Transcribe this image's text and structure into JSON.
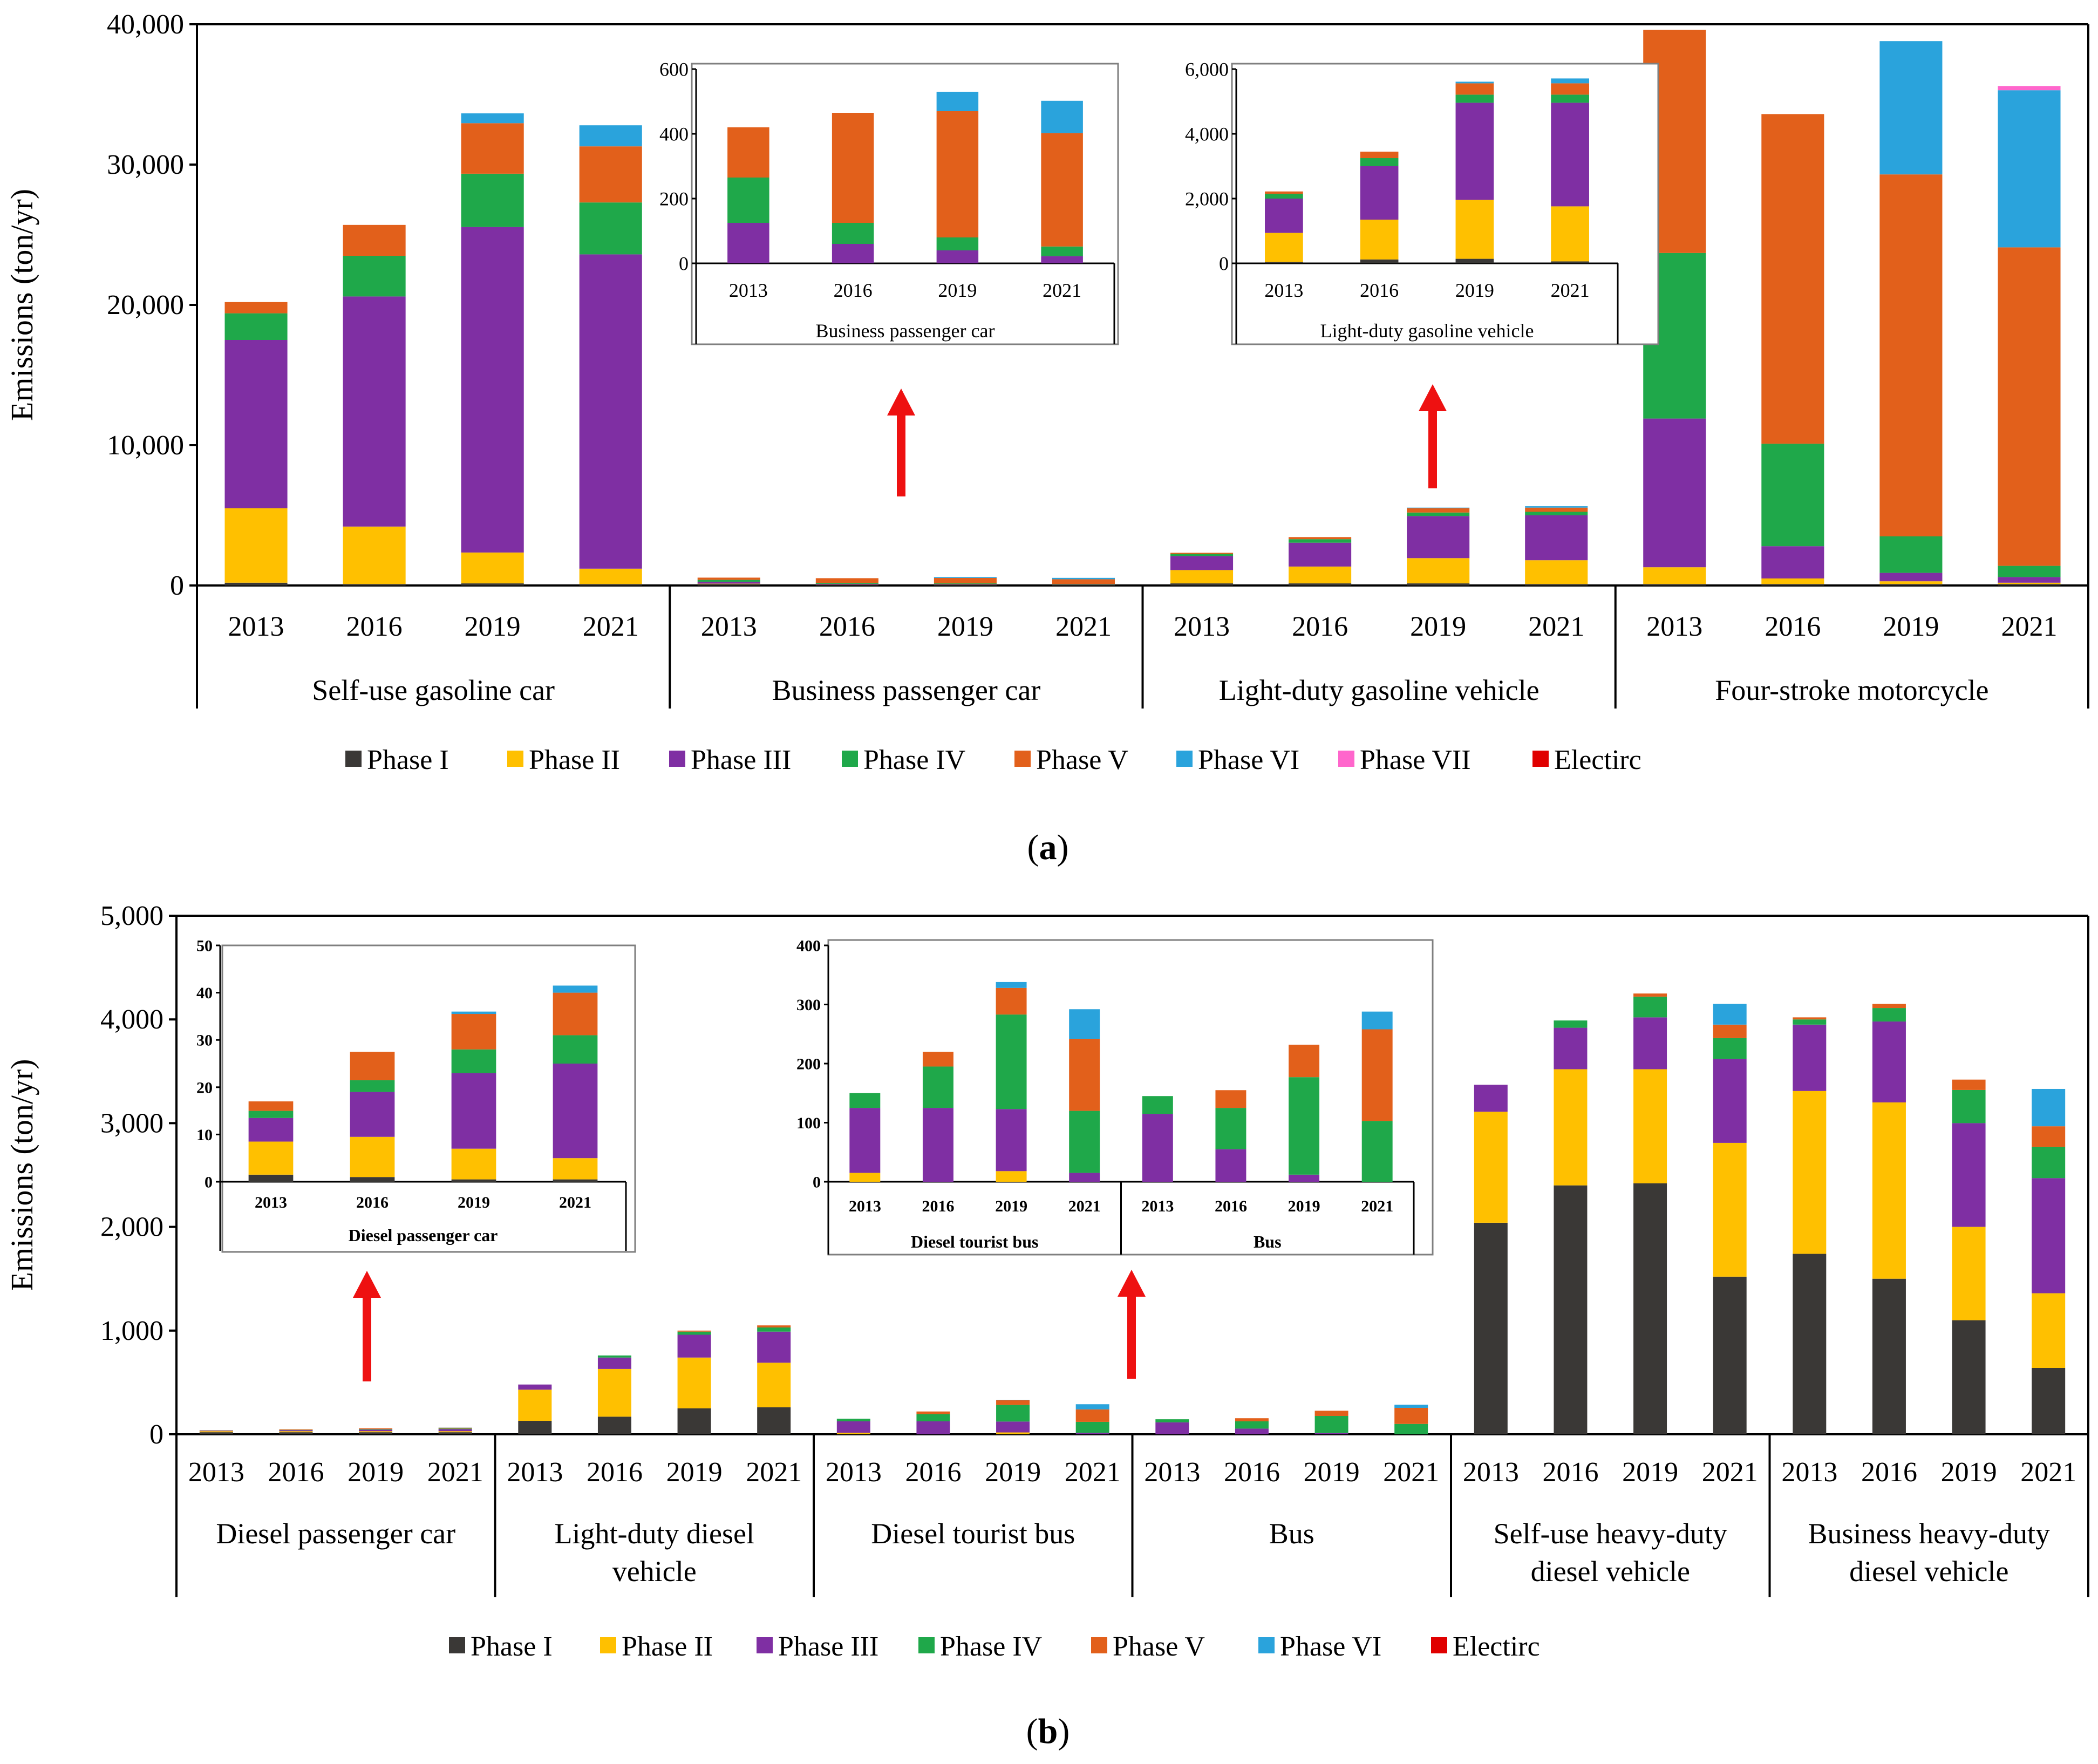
{
  "colors": {
    "Phase I": "#3a3836",
    "Phase II": "#ffc000",
    "Phase III": "#7f2fa3",
    "Phase IV": "#1fa84a",
    "Phase V": "#e2601b",
    "Phase VI": "#2aa3dc",
    "Phase VII": "#ff66cc",
    "Electirc": "#e00000"
  },
  "arrow_color": "#ee1111",
  "chart_data": [
    {
      "id": "a",
      "type": "bar",
      "stacked": true,
      "caption": "a",
      "ylabel": "Emissions (ton/yr)",
      "ylim": [
        0,
        40000
      ],
      "yticks": [
        "0",
        "10,000",
        "20,000",
        "30,000",
        "40,000"
      ],
      "years": [
        "2013",
        "2016",
        "2019",
        "2021"
      ],
      "groups": [
        "Self-use gasoline car",
        "Business passenger car",
        "Light-duty gasoline vehicle",
        "Four-stroke motorcycle"
      ],
      "legend": [
        "Phase I",
        "Phase II",
        "Phase III",
        "Phase IV",
        "Phase V",
        "Phase VI",
        "Phase VII",
        "Electirc"
      ],
      "series": [
        {
          "name": "Phase I",
          "values": [
            200,
            100,
            150,
            100,
            100,
            50,
            60,
            40,
            150,
            150,
            150,
            100,
            100,
            100,
            100,
            100
          ]
        },
        {
          "name": "Phase II",
          "values": [
            5300,
            4100,
            2200,
            1100,
            30,
            10,
            10,
            5,
            950,
            1200,
            1800,
            1700,
            1200,
            400,
            200,
            100
          ]
        },
        {
          "name": "Phase III",
          "values": [
            12000,
            16400,
            23200,
            22400,
            130,
            60,
            40,
            20,
            1000,
            1700,
            3000,
            3200,
            10600,
            2300,
            600,
            400
          ]
        },
        {
          "name": "Phase IV",
          "values": [
            1900,
            2900,
            3800,
            3700,
            140,
            70,
            40,
            30,
            150,
            250,
            250,
            250,
            11800,
            7300,
            2600,
            800
          ]
        },
        {
          "name": "Phase V",
          "values": [
            800,
            2200,
            3600,
            4000,
            160,
            330,
            390,
            350,
            80,
            150,
            300,
            300,
            15900,
            23500,
            25800,
            22700
          ]
        },
        {
          "name": "Phase VI",
          "values": [
            0,
            0,
            700,
            1500,
            0,
            0,
            60,
            100,
            0,
            0,
            50,
            100,
            0,
            0,
            9500,
            11200
          ]
        },
        {
          "name": "Phase VII",
          "values": [
            0,
            0,
            0,
            0,
            0,
            0,
            0,
            0,
            0,
            0,
            0,
            0,
            0,
            0,
            0,
            300
          ]
        },
        {
          "name": "Electirc",
          "values": [
            0,
            0,
            0,
            0,
            0,
            0,
            0,
            0,
            0,
            0,
            0,
            0,
            0,
            0,
            0,
            0
          ]
        }
      ],
      "insets": [
        {
          "xlabel": "Business passenger car",
          "ylim": [
            0,
            600
          ],
          "yticks": [
            "0",
            "200",
            "400",
            "600"
          ],
          "years": [
            "2013",
            "2016",
            "2019",
            "2021"
          ],
          "series": [
            {
              "name": "Phase III",
              "values": [
                125,
                60,
                40,
                22
              ]
            },
            {
              "name": "Phase IV",
              "values": [
                140,
                65,
                40,
                30
              ]
            },
            {
              "name": "Phase V",
              "values": [
                155,
                340,
                390,
                350
              ]
            },
            {
              "name": "Phase VI",
              "values": [
                0,
                0,
                60,
                100
              ]
            }
          ]
        },
        {
          "xlabel": "Light-duty gasoline vehicle",
          "ylim": [
            0,
            6000
          ],
          "yticks": [
            "0",
            "2,000",
            "4,000",
            "6,000"
          ],
          "years": [
            "2013",
            "2016",
            "2019",
            "2021"
          ],
          "series": [
            {
              "name": "Phase I",
              "values": [
                40,
                120,
                140,
                60
              ]
            },
            {
              "name": "Phase II",
              "values": [
                900,
                1230,
                1820,
                1700
              ]
            },
            {
              "name": "Phase III",
              "values": [
                1060,
                1650,
                3000,
                3200
              ]
            },
            {
              "name": "Phase IV",
              "values": [
                150,
                250,
                250,
                250
              ]
            },
            {
              "name": "Phase V",
              "values": [
                70,
                200,
                350,
                350
              ]
            },
            {
              "name": "Phase VI",
              "values": [
                0,
                0,
                50,
                150
              ]
            }
          ]
        }
      ]
    },
    {
      "id": "b",
      "type": "bar",
      "stacked": true,
      "caption": "b",
      "ylabel": "Emissions (ton/yr)",
      "ylim": [
        0,
        5000
      ],
      "yticks": [
        "0",
        "1,000",
        "2,000",
        "3,000",
        "4,000",
        "5,000"
      ],
      "years": [
        "2013",
        "2016",
        "2019",
        "2021"
      ],
      "groups": [
        "Diesel passenger car",
        "Light-duty diesel vehicle",
        "Diesel tourist bus",
        "Bus",
        "Self-use heavy-duty diesel vehicle",
        "Business heavy-duty diesel vehicle"
      ],
      "legend": [
        "Phase I",
        "Phase II",
        "Phase III",
        "Phase IV",
        "Phase V",
        "Phase VI",
        "Electirc"
      ],
      "series": [
        {
          "name": "Phase I",
          "values": [
            20,
            20,
            20,
            20,
            130,
            170,
            250,
            260,
            0,
            0,
            0,
            0,
            0,
            0,
            0,
            0,
            2040,
            2400,
            2420,
            1520,
            1740,
            1500,
            1100,
            640
          ]
        },
        {
          "name": "Phase II",
          "values": [
            10,
            10,
            10,
            10,
            300,
            460,
            490,
            430,
            15,
            0,
            18,
            0,
            0,
            0,
            0,
            0,
            1070,
            1120,
            1100,
            1290,
            1570,
            1700,
            900,
            720
          ]
        },
        {
          "name": "Phase III",
          "values": [
            5,
            10,
            15,
            20,
            50,
            110,
            220,
            300,
            110,
            125,
            105,
            15,
            115,
            55,
            12,
            0,
            260,
            400,
            500,
            810,
            640,
            780,
            1000,
            1110
          ]
        },
        {
          "name": "Phase IV",
          "values": [
            2,
            3,
            5,
            6,
            0,
            20,
            30,
            40,
            25,
            70,
            160,
            105,
            30,
            70,
            165,
            100,
            0,
            70,
            200,
            200,
            50,
            130,
            320,
            300
          ]
        },
        {
          "name": "Phase V",
          "values": [
            2,
            5,
            7,
            8,
            0,
            0,
            10,
            20,
            0,
            25,
            45,
            120,
            0,
            30,
            50,
            155,
            0,
            0,
            30,
            130,
            20,
            40,
            100,
            200
          ]
        },
        {
          "name": "Phase VI",
          "values": [
            0,
            0,
            0,
            1,
            0,
            0,
            0,
            0,
            0,
            0,
            5,
            50,
            0,
            0,
            0,
            30,
            0,
            0,
            0,
            200,
            0,
            0,
            0,
            360
          ]
        },
        {
          "name": "Electirc",
          "values": [
            0,
            0,
            0,
            0,
            0,
            0,
            0,
            0,
            0,
            0,
            0,
            0,
            0,
            0,
            0,
            0,
            0,
            0,
            0,
            0,
            0,
            0,
            0,
            0
          ]
        }
      ],
      "insets": [
        {
          "xlabel": "Diesel passenger car",
          "ylim": [
            0,
            50
          ],
          "yticks": [
            "0",
            "10",
            "20",
            "30",
            "40",
            "50"
          ],
          "years": [
            "2013",
            "2016",
            "2019",
            "2021"
          ],
          "series": [
            {
              "name": "Phase I",
              "values": [
                1.5,
                1,
                0.5,
                0.5
              ]
            },
            {
              "name": "Phase II",
              "values": [
                7,
                8.5,
                6.5,
                4.5
              ]
            },
            {
              "name": "Phase III",
              "values": [
                5,
                9.5,
                16,
                20
              ]
            },
            {
              "name": "Phase IV",
              "values": [
                1.5,
                2.5,
                5,
                6
              ]
            },
            {
              "name": "Phase V",
              "values": [
                2,
                6,
                7.5,
                9
              ]
            },
            {
              "name": "Phase VI",
              "values": [
                0,
                0,
                0.5,
                1.5
              ]
            }
          ]
        },
        {
          "xlabel_groups": [
            "Diesel tourist bus",
            "Bus"
          ],
          "ylim": [
            0,
            400
          ],
          "yticks": [
            "0",
            "100",
            "200",
            "300",
            "400"
          ],
          "years": [
            "2013",
            "2016",
            "2019",
            "2021",
            "2013",
            "2016",
            "2019",
            "2021"
          ],
          "series": [
            {
              "name": "Phase II",
              "values": [
                15,
                0,
                18,
                0,
                0,
                0,
                0,
                0
              ]
            },
            {
              "name": "Phase III",
              "values": [
                110,
                125,
                105,
                15,
                115,
                55,
                12,
                0
              ]
            },
            {
              "name": "Phase IV",
              "values": [
                25,
                70,
                160,
                105,
                30,
                70,
                165,
                103
              ]
            },
            {
              "name": "Phase V",
              "values": [
                0,
                25,
                45,
                122,
                0,
                30,
                55,
                155
              ]
            },
            {
              "name": "Phase VI",
              "values": [
                0,
                0,
                10,
                50,
                0,
                0,
                0,
                30
              ]
            }
          ]
        }
      ]
    }
  ]
}
